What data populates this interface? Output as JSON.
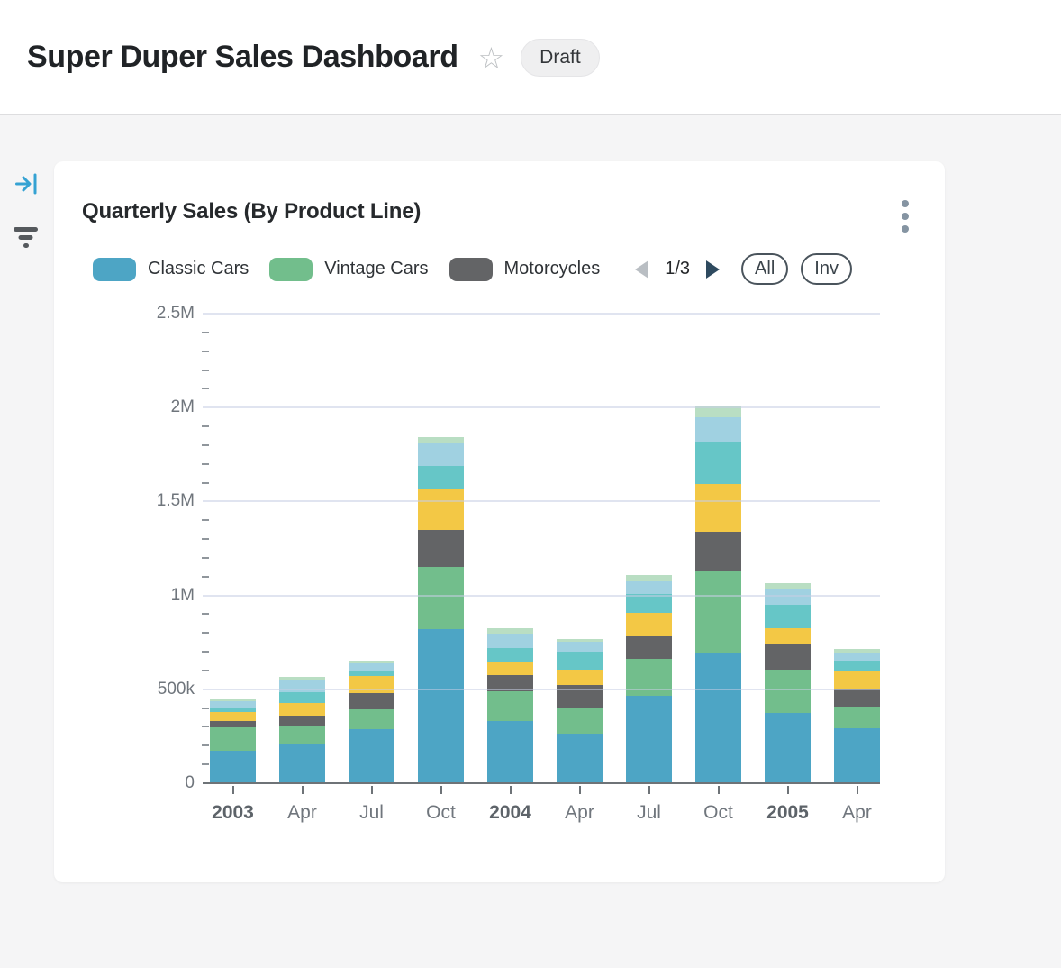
{
  "header": {
    "title": "Super Duper Sales Dashboard",
    "status_badge": "Draft"
  },
  "rail": {
    "collapse_icon": "expand-panel-right",
    "filter_icon": "filter"
  },
  "card": {
    "title": "Quarterly Sales (By Product Line)",
    "menu_icon": "kebab-vertical-menu",
    "legend_pager": {
      "page_text": "1/3",
      "prev_icon": "left-triangle",
      "next_icon": "right-triangle",
      "all_button": "All",
      "invert_button": "Inv"
    }
  },
  "colors": {
    "page_background": "#F5F5F6",
    "card_background": "#FFFFFF",
    "gridline": "#E2E6F0",
    "axis_line": "#6E7377",
    "axis_label": "#6F757C",
    "accent_blue_icon": "#35A2D3",
    "pager_next_arrow": "#2E4A5F",
    "pager_prev_arrow_disabled": "#B9BEC3"
  },
  "chart_data": {
    "type": "bar",
    "stacked": true,
    "title": "Quarterly Sales (By Product Line)",
    "xlabel": "",
    "ylabel": "",
    "grid": true,
    "legend_position": "top",
    "legend_pages_total": 3,
    "legend_current_page": "1/3",
    "note": "Legend shows page 1 of 3; series 4-7 names are not visible in the screenshot",
    "categories": [
      "2003",
      "Apr",
      "Jul",
      "Oct",
      "2004",
      "Apr",
      "Jul",
      "Oct",
      "2005",
      "Apr"
    ],
    "bold_categories": [
      true,
      false,
      false,
      false,
      true,
      false,
      false,
      false,
      true,
      false
    ],
    "ylim": [
      0,
      2500000
    ],
    "y_ticks": [
      {
        "value": 0,
        "label": "0"
      },
      {
        "value": 500000,
        "label": "500k"
      },
      {
        "value": 1000000,
        "label": "1M"
      },
      {
        "value": 1500000,
        "label": "1.5M"
      },
      {
        "value": 2000000,
        "label": "2M"
      },
      {
        "value": 2500000,
        "label": "2.5M"
      }
    ],
    "series": [
      {
        "name": "Classic Cars",
        "color": "#4DA5C5",
        "in_visible_legend": true,
        "values": [
          172000,
          212000,
          287000,
          820000,
          331000,
          265000,
          466000,
          694000,
          373000,
          293000
        ]
      },
      {
        "name": "Vintage Cars",
        "color": "#72BE8C",
        "in_visible_legend": true,
        "values": [
          124000,
          95000,
          108000,
          331000,
          159000,
          133000,
          198000,
          441000,
          233000,
          116000
        ]
      },
      {
        "name": "Motorcycles",
        "color": "#636466",
        "in_visible_legend": true,
        "values": [
          35000,
          52000,
          84000,
          199000,
          85000,
          124000,
          119000,
          203000,
          133000,
          96000
        ]
      },
      {
        "name": "",
        "color": "#F3C845",
        "in_visible_legend": false,
        "values": [
          51000,
          67000,
          94000,
          218000,
          75000,
          84000,
          122000,
          257000,
          86000,
          93000
        ]
      },
      {
        "name": "",
        "color": "#66C6C7",
        "in_visible_legend": false,
        "values": [
          24000,
          61000,
          21000,
          121000,
          71000,
          96000,
          103000,
          224000,
          125000,
          56000
        ]
      },
      {
        "name": "",
        "color": "#A0D1E1",
        "in_visible_legend": false,
        "values": [
          32000,
          64000,
          44000,
          121000,
          77000,
          50000,
          69000,
          128000,
          85000,
          43000
        ]
      },
      {
        "name": "",
        "color": "#B9DEC3",
        "in_visible_legend": false,
        "values": [
          12000,
          14000,
          15000,
          31000,
          27000,
          18000,
          32000,
          61000,
          32000,
          16000
        ]
      }
    ]
  }
}
